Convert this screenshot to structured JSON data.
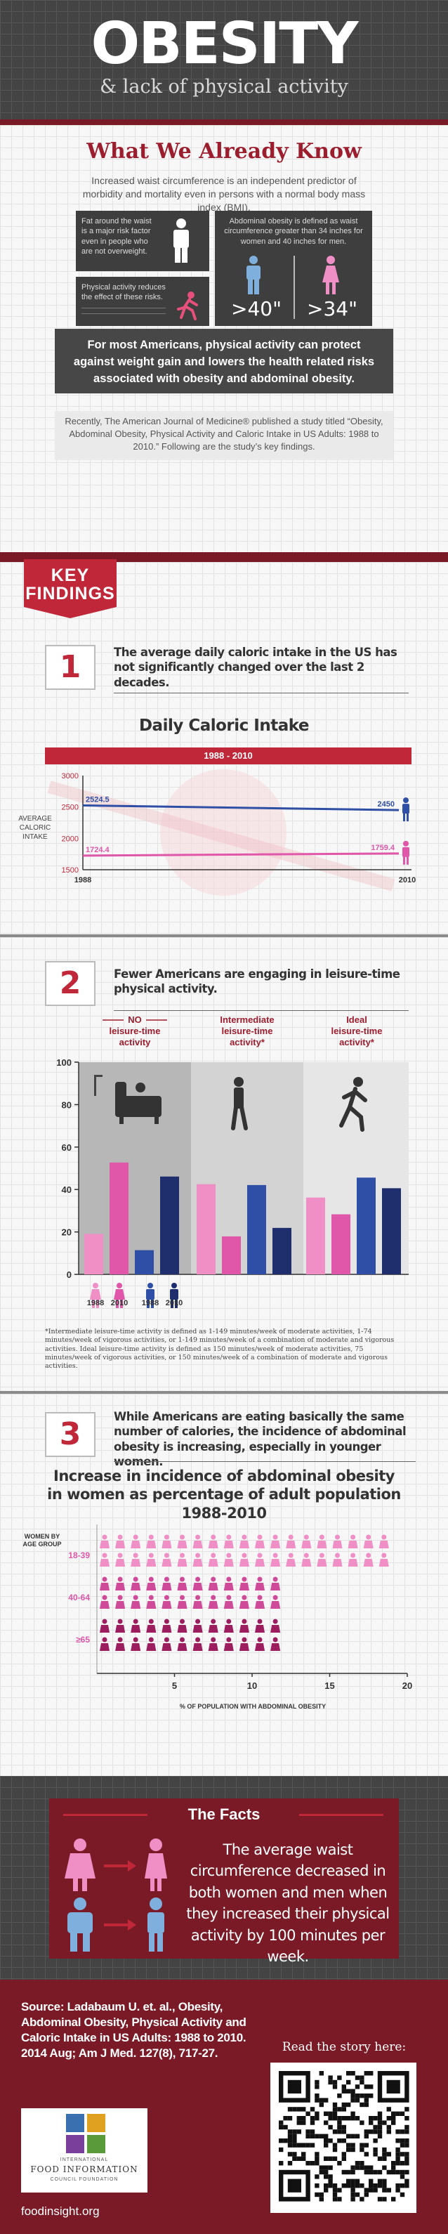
{
  "header": {
    "title": "OBESITY",
    "subtitle": "& lack of physical activity"
  },
  "known": {
    "title": "What We Already Know",
    "intro": "Increased waist circumference is an independent predictor of morbidity and mortality even in persons with a normal body mass index (BMI).",
    "fat_box": "Fat around the waist is a major risk factor even in people who are not overweight.",
    "activity_box": "Physical activity reduces the effect of these risks.",
    "abdominal_box": "Abdominal obesity is defined as waist circumference greater than 34 inches for women and 40 inches for men.",
    "men_value": ">40\"",
    "women_value": ">34\"",
    "callout": "For most Americans, physical activity can protect against weight gain and lowers the health related risks associated with obesity and abdominal obesity.",
    "recent": "Recently, The American Journal of Medicine® published a study titled “Obesity, Abdominal Obesity, Physical Activity and Caloric Intake in US Adults: 1988 to 2010.” Following are the study’s key findings."
  },
  "key_findings": {
    "label_line1": "KEY",
    "label_line2": "FINDINGS"
  },
  "finding1": {
    "number": "1",
    "text": "The average daily caloric intake in the US has not significantly changed over the last 2 decades.",
    "chart_title": "Daily Caloric Intake",
    "band": "1988 - 2010"
  },
  "finding2": {
    "number": "2",
    "text": "Fewer Americans are engaging in leisure-time physical activity.",
    "footnote": "*Intermediate leisure-time activity is defined as 1-149 minutes/week of moderate activities, 1-74 minutes/week of vigorous activities, or 1-149 minutes/week of a combination of moderate and vigorous activities. Ideal leisure-time activity is defined as 150 minutes/week of moderate activities, 75 minutes/week of vigorous activities, or 150 minutes/week of a combination of moderate and vigorous activities."
  },
  "finding3": {
    "number": "3",
    "text": "While Americans are eating basically the same number of calories, the incidence of abdominal obesity is increasing, especially in younger women.",
    "chart_title": "Increase in incidence of abdominal obesity in women as percentage of adult population 1988-2010"
  },
  "facts": {
    "title": "The Facts",
    "body": "The average waist circumference decreased in both women and men when they increased their physical activity by 100 minutes per week."
  },
  "footer": {
    "source": "Source: Ladabaum U. et. al., Obesity, Abdominal Obesity, Physical Activity and Caloric Intake in US Adults: 1988 to 2010. 2014 Aug; Am J Med. 127(8), 717-27.",
    "read": "Read the story here:",
    "site": "foodinsight.org",
    "logo_line1": "INTERNATIONAL",
    "logo_line2": "FOOD INFORMATION",
    "logo_line3": "COUNCIL FOUNDATION"
  },
  "colors": {
    "accent_red": "#9c1e2e",
    "dark_red": "#7a1a26",
    "women_pink": "#e056a8",
    "women_light": "#ef8fc6",
    "men_blue": "#2f4fa6",
    "men_light": "#7fb0dd",
    "dark_gray": "#444444"
  },
  "chart_data": [
    {
      "type": "line",
      "title": "Daily Caloric Intake",
      "subtitle": "1988 - 2010",
      "ylabel": "AVERAGE CALORIC INTAKE",
      "x": [
        "1988",
        "2010"
      ],
      "ylim": [
        1500,
        3000
      ],
      "yticks": [
        1500,
        2000,
        2500,
        3000
      ],
      "series": [
        {
          "values": [
            2524.5,
            2450
          ],
          "color": "#2f4fa6"
        },
        {
          "values": [
            1724.4,
            1759.4
          ],
          "color": "#e056a8"
        }
      ],
      "data_labels": [
        "2524.5",
        "2450",
        "1724.4",
        "1759.4"
      ]
    },
    {
      "type": "bar",
      "categories": [
        "NO leisure-time activity",
        "Intermediate leisure-time activity*",
        "Ideal leisure-time activity*"
      ],
      "ylim": [
        0,
        100
      ],
      "yticks": [
        0,
        20,
        40,
        60,
        80,
        100
      ],
      "legend": [
        "1988",
        "2010",
        "1988",
        "2010"
      ],
      "series": [
        {
          "values": [
            19.1,
            42.5,
            36.2
          ],
          "color": "#ef8fc6"
        },
        {
          "values": [
            52.7,
            17.9,
            28.3
          ],
          "color": "#e056a8"
        },
        {
          "values": [
            11.4,
            42.1,
            45.6
          ],
          "color": "#2f4fa6"
        },
        {
          "values": [
            46.1,
            21.9,
            40.6
          ],
          "color": "#1f2f6e"
        }
      ]
    },
    {
      "type": "bar",
      "orientation": "horizontal",
      "ylabel": "WOMEN BY AGE GROUP",
      "xlabel": "% OF POPULATION WITH ABDOMINAL OBESITY",
      "categories": [
        "18-39",
        "40-64",
        "≥65"
      ],
      "xlim": [
        0,
        20
      ],
      "xticks": [
        5,
        10,
        15,
        20
      ],
      "values": [
        19,
        12,
        12
      ],
      "color": "#e056a8"
    }
  ]
}
